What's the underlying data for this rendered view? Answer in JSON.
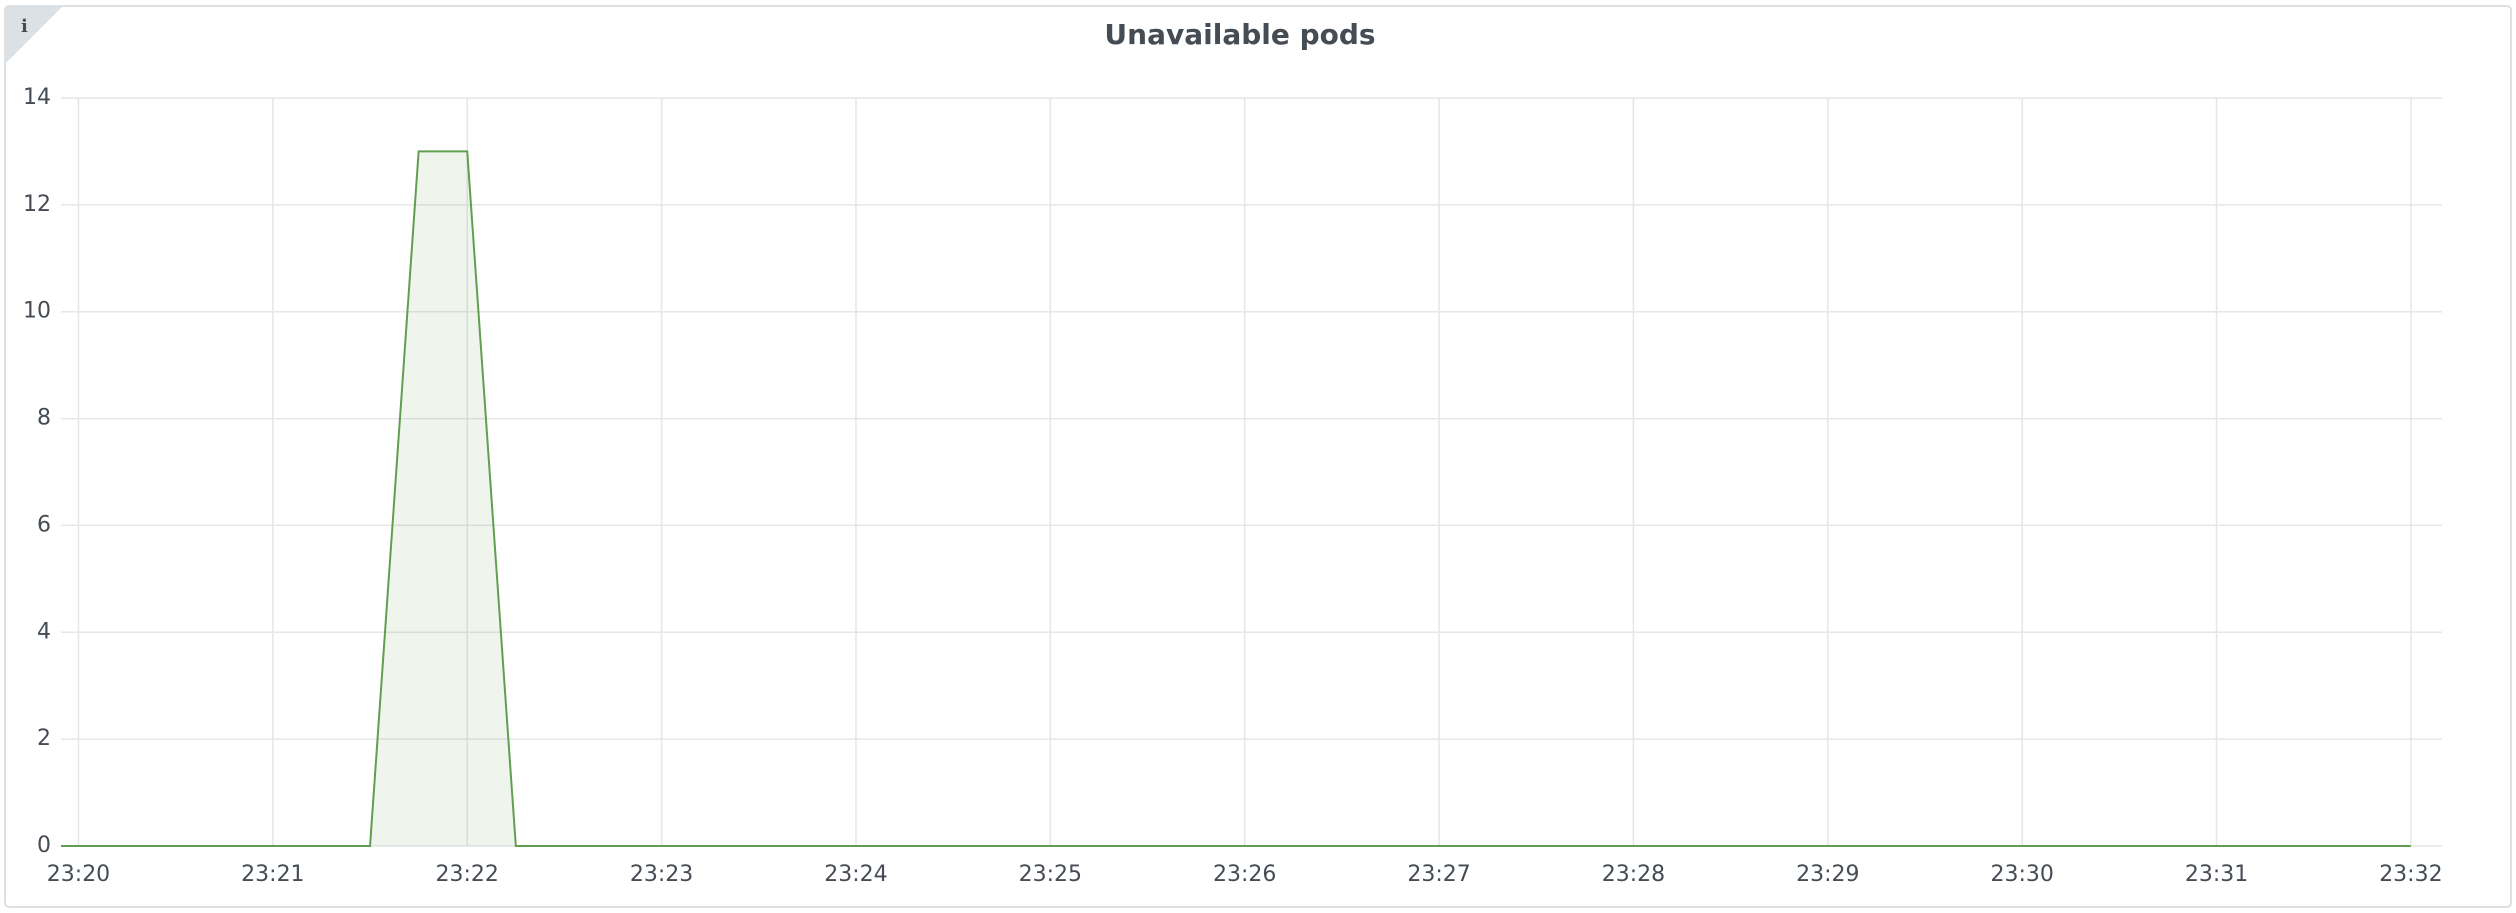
{
  "chart_data": {
    "type": "line",
    "title": "Unavailable pods",
    "x": [
      1399.91,
      1401.5,
      1401.75,
      1402,
      1402.25,
      1412
    ],
    "series": [
      {
        "color": "#629e51",
        "values": [
          0,
          0,
          13,
          13,
          0,
          0
        ]
      }
    ],
    "fill": true,
    "xlim": [
      1399.91,
      1412.16
    ],
    "xticks": [
      {
        "value": 1400,
        "label": "23:20"
      },
      {
        "value": 1401,
        "label": "23:21"
      },
      {
        "value": 1402,
        "label": "23:22"
      },
      {
        "value": 1403,
        "label": "23:23"
      },
      {
        "value": 1404,
        "label": "23:24"
      },
      {
        "value": 1405,
        "label": "23:25"
      },
      {
        "value": 1406,
        "label": "23:26"
      },
      {
        "value": 1407,
        "label": "23:27"
      },
      {
        "value": 1408,
        "label": "23:28"
      },
      {
        "value": 1409,
        "label": "23:29"
      },
      {
        "value": 1410,
        "label": "23:30"
      },
      {
        "value": 1411,
        "label": "23:31"
      },
      {
        "value": 1412,
        "label": "23:32"
      }
    ],
    "ylim": [
      0,
      14
    ],
    "yticks": [
      0,
      2,
      4,
      6,
      8,
      10,
      12,
      14
    ],
    "grid": true
  }
}
